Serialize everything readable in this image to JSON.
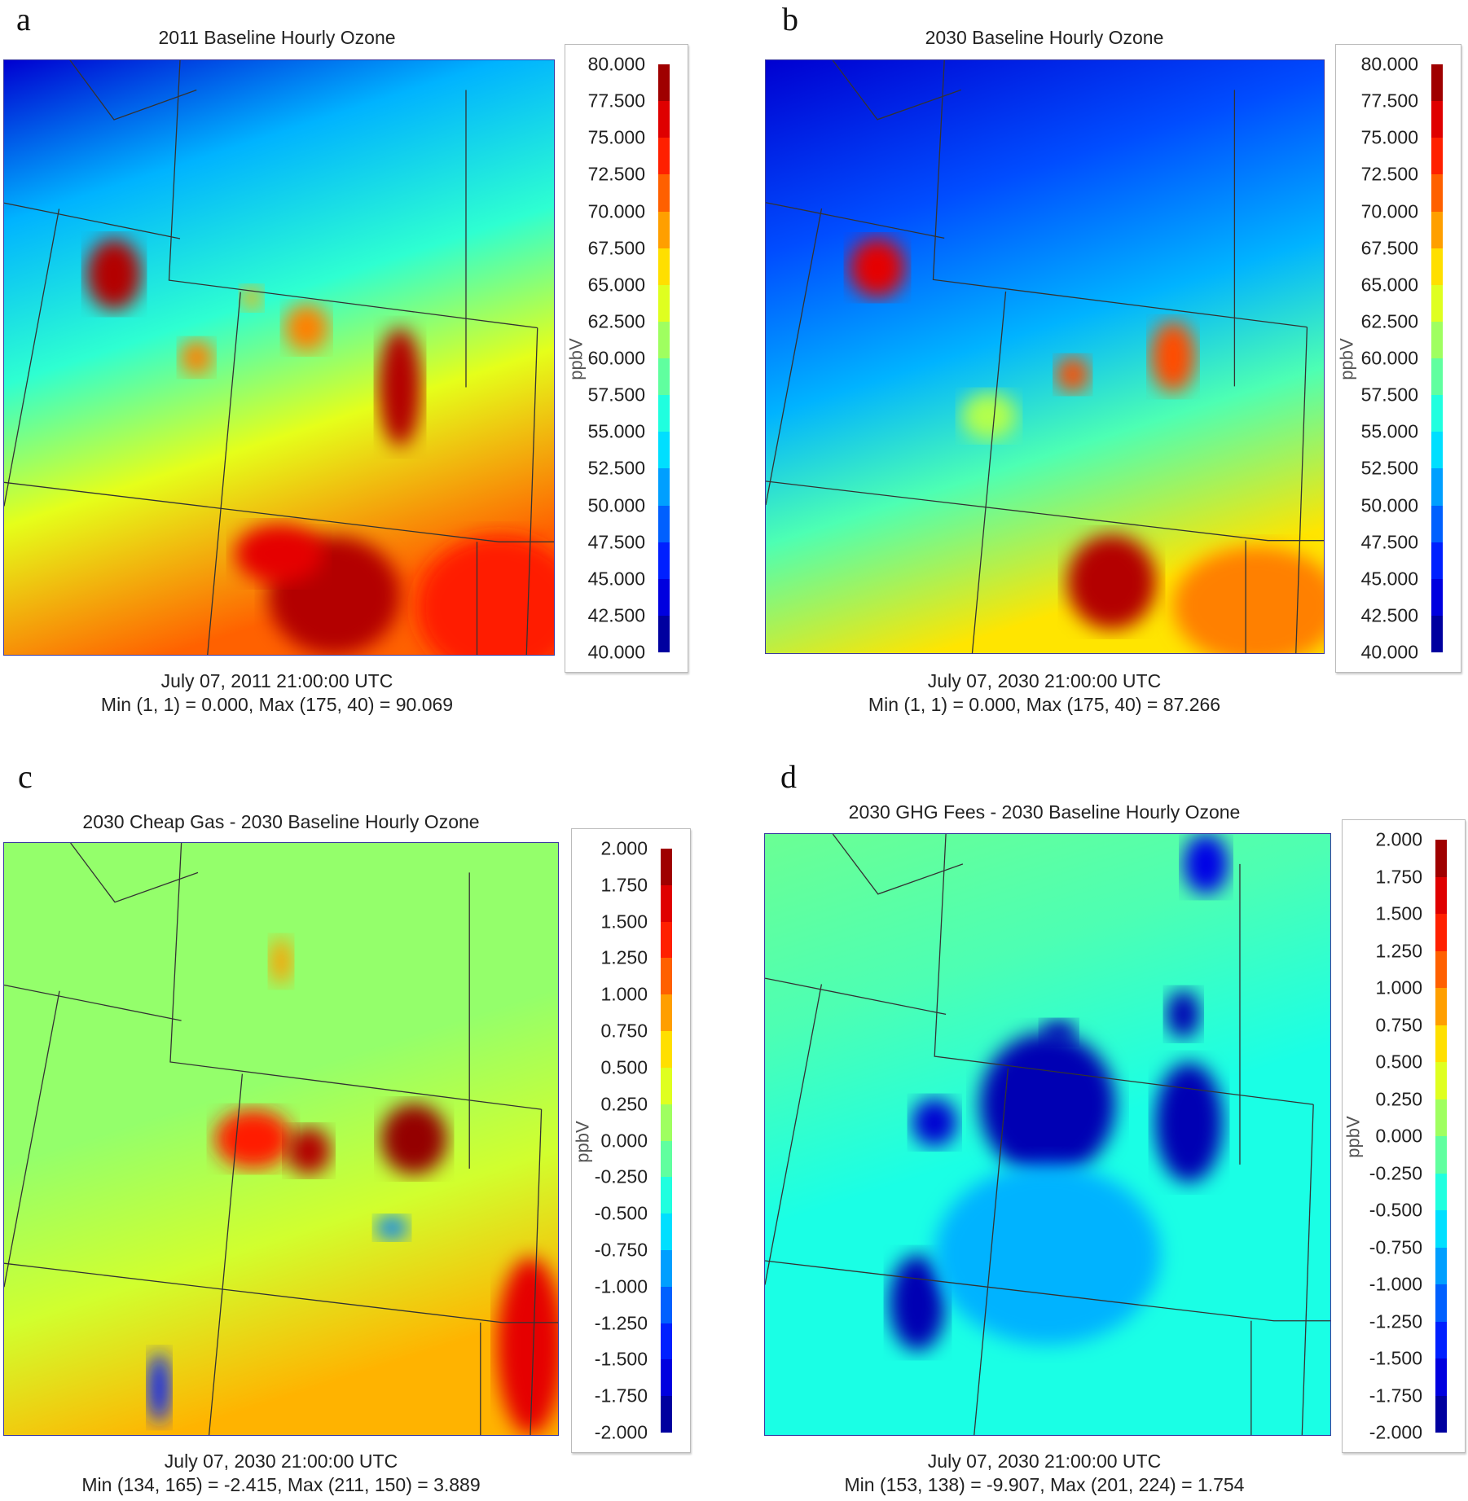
{
  "panels": [
    {
      "label": "a",
      "title": "2011 Baseline Hourly Ozone",
      "footer_time": "July 07, 2011 21:00:00 UTC",
      "footer_stats": "Min (1, 1) = 0.000, Max (175, 40) = 90.069",
      "unit": "ppbV",
      "colorbar_ticks": [
        "80.000",
        "77.500",
        "75.000",
        "72.500",
        "70.000",
        "67.500",
        "65.000",
        "62.500",
        "60.000",
        "57.500",
        "55.000",
        "52.500",
        "50.000",
        "47.500",
        "45.000",
        "42.500",
        "40.000"
      ],
      "colormap": "jet"
    },
    {
      "label": "b",
      "title": "2030 Baseline Hourly Ozone",
      "footer_time": "July 07, 2030 21:00:00 UTC",
      "footer_stats": "Min (1, 1) = 0.000, Max (175, 40) = 87.266",
      "unit": "ppbV",
      "colorbar_ticks": [
        "80.000",
        "77.500",
        "75.000",
        "72.500",
        "70.000",
        "67.500",
        "65.000",
        "62.500",
        "60.000",
        "57.500",
        "55.000",
        "52.500",
        "50.000",
        "47.500",
        "45.000",
        "42.500",
        "40.000"
      ],
      "colormap": "jet"
    },
    {
      "label": "c",
      "title": "2030 Cheap Gas - 2030 Baseline Hourly Ozone",
      "footer_time": "July 07, 2030 21:00:00 UTC",
      "footer_stats": "Min (134, 165) = -2.415, Max (211, 150) = 3.889",
      "unit": "ppbV",
      "colorbar_ticks": [
        "2.000",
        "1.750",
        "1.500",
        "1.250",
        "1.000",
        "0.750",
        "0.500",
        "0.250",
        "0.000",
        "-0.250",
        "-0.500",
        "-0.750",
        "-1.000",
        "-1.250",
        "-1.500",
        "-1.750",
        "-2.000"
      ],
      "colormap": "jet"
    },
    {
      "label": "d",
      "title": "2030 GHG Fees - 2030 Baseline Hourly Ozone",
      "footer_time": "July 07, 2030 21:00:00 UTC",
      "footer_stats": "Min (153, 138) = -9.907, Max (201, 224) = 1.754",
      "unit": "ppbV",
      "colorbar_ticks": [
        "2.000",
        "1.750",
        "1.500",
        "1.250",
        "1.000",
        "0.750",
        "0.500",
        "0.250",
        "0.000",
        "-0.250",
        "-0.500",
        "-0.750",
        "-1.000",
        "-1.250",
        "-1.500",
        "-1.750",
        "-2.000"
      ],
      "colormap": "jet"
    }
  ],
  "chart_data": [
    {
      "type": "heatmap",
      "title": "2011 Baseline Hourly Ozone",
      "colorbar_label": "ppbV",
      "zlim": [
        40,
        80
      ],
      "annotation": [
        "July 07, 2011 21:00:00 UTC",
        "Min (1, 1) = 0.000, Max (175, 40) = 90.069"
      ]
    },
    {
      "type": "heatmap",
      "title": "2030 Baseline Hourly Ozone",
      "colorbar_label": "ppbV",
      "zlim": [
        40,
        80
      ],
      "annotation": [
        "July 07, 2030 21:00:00 UTC",
        "Min (1, 1) = 0.000, Max (175, 40) = 87.266"
      ]
    },
    {
      "type": "heatmap",
      "title": "2030 Cheap Gas - 2030 Baseline Hourly Ozone",
      "colorbar_label": "ppbV",
      "zlim": [
        -2,
        2
      ],
      "annotation": [
        "July 07, 2030 21:00:00 UTC",
        "Min (134, 165) = -2.415, Max (211, 150) = 3.889"
      ]
    },
    {
      "type": "heatmap",
      "title": "2030 GHG Fees - 2030 Baseline Hourly Ozone",
      "colorbar_label": "ppbV",
      "zlim": [
        -2,
        2
      ],
      "annotation": [
        "July 07, 2030 21:00:00 UTC",
        "Min (153, 138) = -9.907, Max (201, 224) = 1.754"
      ]
    }
  ]
}
